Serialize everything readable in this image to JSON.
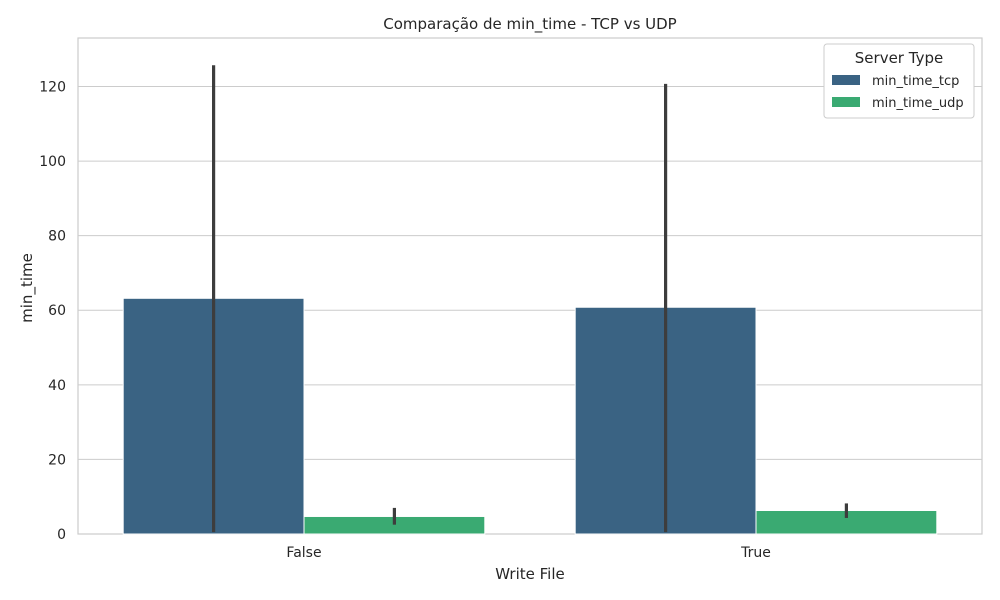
{
  "chart_data": {
    "type": "bar",
    "title": "Comparação de min_time - TCP vs UDP",
    "xlabel": "Write File",
    "ylabel": "min_time",
    "categories": [
      "False",
      "True"
    ],
    "ylim": [
      0,
      133
    ],
    "yticks": [
      0,
      20,
      40,
      60,
      80,
      100,
      120
    ],
    "grid": true,
    "legend": {
      "title": "Server Type",
      "position": "top-right"
    },
    "series": [
      {
        "name": "min_time_tcp",
        "color": "#3a6383",
        "values": [
          63.2,
          60.8
        ],
        "error_low": [
          0.5,
          0.5
        ],
        "error_high": [
          125.7,
          120.7
        ]
      },
      {
        "name": "min_time_udp",
        "color": "#3aaa72",
        "values": [
          4.7,
          6.3
        ],
        "error_low": [
          2.5,
          4.3
        ],
        "error_high": [
          7.0,
          8.2
        ]
      }
    ]
  }
}
